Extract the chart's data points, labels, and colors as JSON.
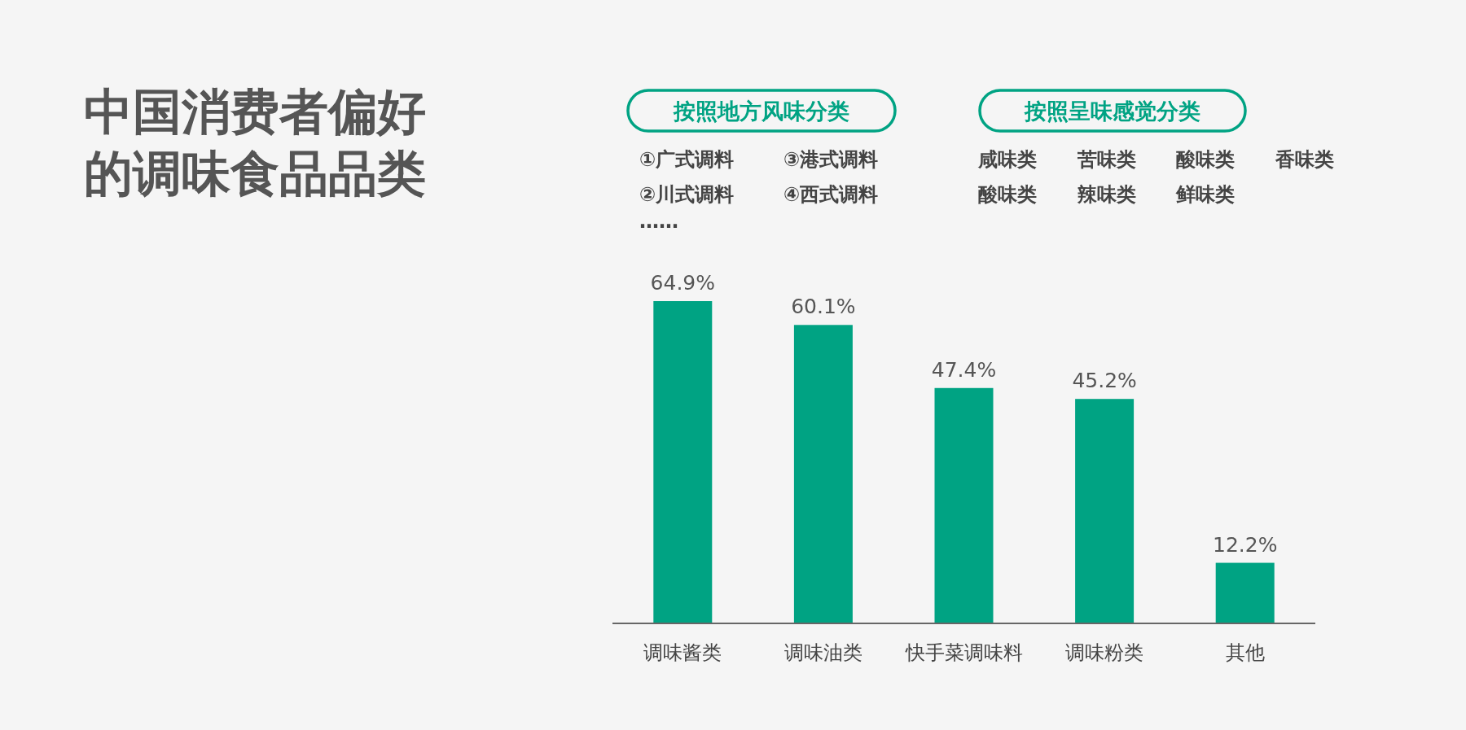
{
  "chart_data": {
    "type": "bar",
    "title": "中国消费者偏好的调味食品品类",
    "categories": [
      "调味酱类",
      "调味油类",
      "快手菜调味料",
      "调味粉类",
      "其他"
    ],
    "values": [
      64.9,
      60.1,
      47.4,
      45.2,
      12.2
    ],
    "value_labels": [
      "64.9%",
      "60.1%",
      "47.4%",
      "45.2%",
      "12.2%"
    ],
    "color": "#00a383",
    "annotations": [
      "按照地方风味分类",
      "①广式调料",
      "③港式调料",
      "②川式调料",
      "④西式调料",
      "……",
      "按照呈味感觉分类",
      "咸味类",
      "苦味类",
      "酸味类",
      "香味类",
      "酸味类",
      "辣味类",
      "鲜味类"
    ]
  }
}
